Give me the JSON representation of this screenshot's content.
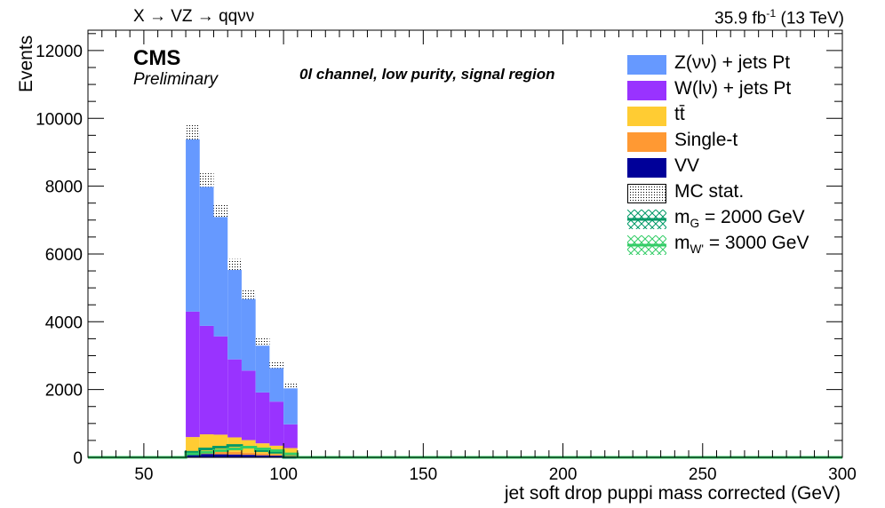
{
  "header": {
    "left_text": "X → VZ → qqνν",
    "lumi": "35.9 fb",
    "lumi_exp": "-1",
    "energy": " (13 TeV)"
  },
  "labels": {
    "cms": "CMS",
    "preliminary": "Preliminary",
    "region": "0l channel, low purity, signal region"
  },
  "chart_data": {
    "type": "bar",
    "stacked": true,
    "xlabel": "jet soft drop puppi mass corrected (GeV)",
    "ylabel": "Events",
    "xlim": [
      30,
      300
    ],
    "ylim": [
      0,
      12600
    ],
    "x_ticks": [
      50,
      100,
      150,
      200,
      250,
      300
    ],
    "y_ticks": [
      0,
      2000,
      4000,
      6000,
      8000,
      10000,
      12000
    ],
    "bin_edges": [
      65,
      70,
      75,
      80,
      85,
      90,
      95,
      100,
      105
    ],
    "series": [
      {
        "name": "VV",
        "color": "#000099",
        "values": [
          80,
          100,
          90,
          85,
          75,
          60,
          50,
          40
        ]
      },
      {
        "name": "Single-t",
        "color": "#ff9933",
        "values": [
          70,
          80,
          80,
          75,
          65,
          55,
          45,
          35
        ]
      },
      {
        "name": "tt̄",
        "color": "#ffcc33",
        "values": [
          450,
          500,
          500,
          430,
          370,
          300,
          250,
          200
        ]
      },
      {
        "name": "W(lν) + jets Pt",
        "color": "#9933ff",
        "values": [
          3700,
          3200,
          2900,
          2300,
          2050,
          1500,
          1300,
          700
        ]
      },
      {
        "name": "Z(νν) + jets Pt",
        "color": "#6699ff",
        "values": [
          5300,
          4300,
          3700,
          2800,
          2250,
          1500,
          1100,
          1150
        ]
      }
    ],
    "mc_stat": {
      "name": "MC stat.",
      "uncertainty": [
        220,
        200,
        180,
        160,
        140,
        120,
        110,
        90
      ]
    },
    "signals": [
      {
        "name": "m_G = 2000 GeV",
        "color": "#009966",
        "values": [
          150,
          250,
          300,
          350,
          300,
          200,
          150,
          0
        ]
      },
      {
        "name": "m_W' = 3000 GeV",
        "color": "#33cc66",
        "values": [
          100,
          150,
          200,
          250,
          300,
          250,
          200,
          100
        ]
      }
    ],
    "legend_position": "top-right"
  },
  "legend": {
    "items": [
      {
        "label": "Z(νν) + jets Pt",
        "kind": "fill",
        "color": "#6699ff"
      },
      {
        "label": "W(lν) + jets Pt",
        "kind": "fill",
        "color": "#9933ff"
      },
      {
        "label": "tt̄",
        "kind": "fill",
        "color": "#ffcc33"
      },
      {
        "label": "Single-t",
        "kind": "fill",
        "color": "#ff9933"
      },
      {
        "label": "VV",
        "kind": "fill",
        "color": "#000099"
      },
      {
        "label": "MC stat.",
        "kind": "hatch",
        "color": "#000000"
      },
      {
        "label": "m",
        "sub": "G",
        "rest": " = 2000 GeV",
        "kind": "line",
        "color": "#009966"
      },
      {
        "label": "m",
        "sub": "W'",
        "rest": " = 3000 GeV",
        "kind": "line",
        "color": "#33cc66"
      }
    ]
  }
}
